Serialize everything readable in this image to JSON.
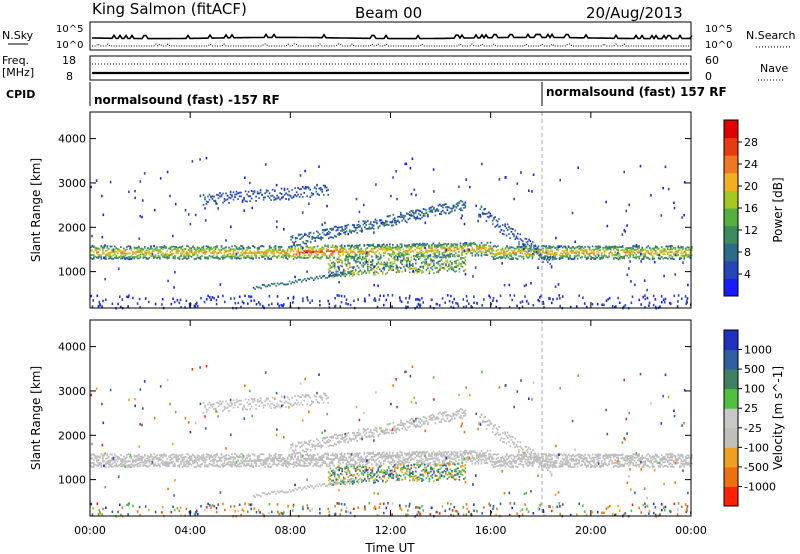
{
  "header": {
    "title": "King Salmon (fitACF)",
    "beam": "Beam 00",
    "date": "20/Aug/2013"
  },
  "top_panels": {
    "nsky_label": "N.Sky",
    "nsky_tick_high": "10^5",
    "nsky_tick_low": "10^0",
    "nsearch_label": "N.Search",
    "nsearch_tick_high": "10^5",
    "nsearch_tick_low": "10^0",
    "freq_label": "Freq.",
    "freq_unit": "[MHz]",
    "freq_tick_high": "18",
    "freq_tick_low": "8",
    "nave_label": "Nave",
    "nave_tick_high": "60",
    "nave_tick_low": "0",
    "cpid_label": "CPID",
    "cpid_segments": [
      {
        "text": "normalsound (fast) -157 RF",
        "start_hour": 0
      },
      {
        "text": "normalsound (fast) 157 RF",
        "start_hour": 18
      }
    ]
  },
  "colors": {
    "power_scale": [
      "#1a1aff",
      "#2545b8",
      "#2e6b8a",
      "#3d8a5e",
      "#55b040",
      "#a5c820",
      "#f0b020",
      "#f07820",
      "#e83c10",
      "#e00000"
    ],
    "velocity_scale": [
      "#2030c0",
      "#3060a0",
      "#3e8060",
      "#50c040",
      "#c8c8c8",
      "#c0c0b8",
      "#f0a020",
      "#f07010",
      "#ff2000"
    ],
    "ground_scatter": "#bdbdbd"
  },
  "chart_data": [
    {
      "type": "heatmap",
      "name": "power-panel",
      "ylabel": "Slant Range [km]",
      "xlabel": "",
      "x_ticks": [
        "00:00",
        "04:00",
        "08:00",
        "12:00",
        "16:00",
        "20:00",
        "00:00"
      ],
      "xlim_hours": [
        0,
        24
      ],
      "ylim_km": [
        180,
        4600
      ],
      "y_ticks": [
        "1000",
        "2000",
        "3000",
        "4000"
      ],
      "colorbar": {
        "label": "Power [dB]",
        "ticks": [
          "4",
          "8",
          "12",
          "16",
          "20",
          "24",
          "28"
        ]
      },
      "features": [
        {
          "feature": "main-band",
          "range_km": [
            1200,
            1650
          ],
          "hours": [
            0,
            24
          ],
          "peak_dB": 24
        },
        {
          "feature": "upper-band",
          "range_km": [
            2400,
            3000
          ],
          "hours": [
            4.5,
            9.5
          ],
          "peak_dB": 10
        },
        {
          "feature": "lower-band",
          "range_km": [
            600,
            1300
          ],
          "hours": [
            6.5,
            15
          ],
          "peak_dB": 20
        },
        {
          "feature": "rising-arc",
          "range_km": [
            1600,
            2600
          ],
          "hours": [
            8,
            15
          ],
          "peak_dB": 14
        },
        {
          "feature": "sporadic-near-range",
          "range_km": [
            200,
            500
          ],
          "hours": [
            0,
            24
          ],
          "peak_dB": 6
        }
      ]
    },
    {
      "type": "heatmap",
      "name": "velocity-panel",
      "ylabel": "Slant Range [km]",
      "xlabel": "Time UT",
      "x_ticks": [
        "00:00",
        "04:00",
        "08:00",
        "12:00",
        "16:00",
        "20:00",
        "00:00"
      ],
      "xlim_hours": [
        0,
        24
      ],
      "ylim_km": [
        180,
        4600
      ],
      "y_ticks": [
        "1000",
        "2000",
        "3000",
        "4000"
      ],
      "colorbar": {
        "label": "Velocity [m s^-1]",
        "ticks": [
          "1000",
          "500",
          "100",
          "25",
          "-25",
          "-100",
          "-500",
          "-1000"
        ]
      },
      "features": [
        {
          "feature": "ground-scatter-band",
          "range_km": [
            1250,
            1650
          ],
          "hours": [
            0,
            24
          ],
          "velocity": 0
        },
        {
          "feature": "positive-flow-region",
          "range_km": [
            900,
            1500
          ],
          "hours": [
            10,
            15
          ],
          "velocity": 200
        },
        {
          "feature": "negative-flow-patches",
          "range_km": [
            1000,
            1600
          ],
          "hours": [
            10,
            13
          ],
          "velocity": -100
        }
      ]
    }
  ]
}
